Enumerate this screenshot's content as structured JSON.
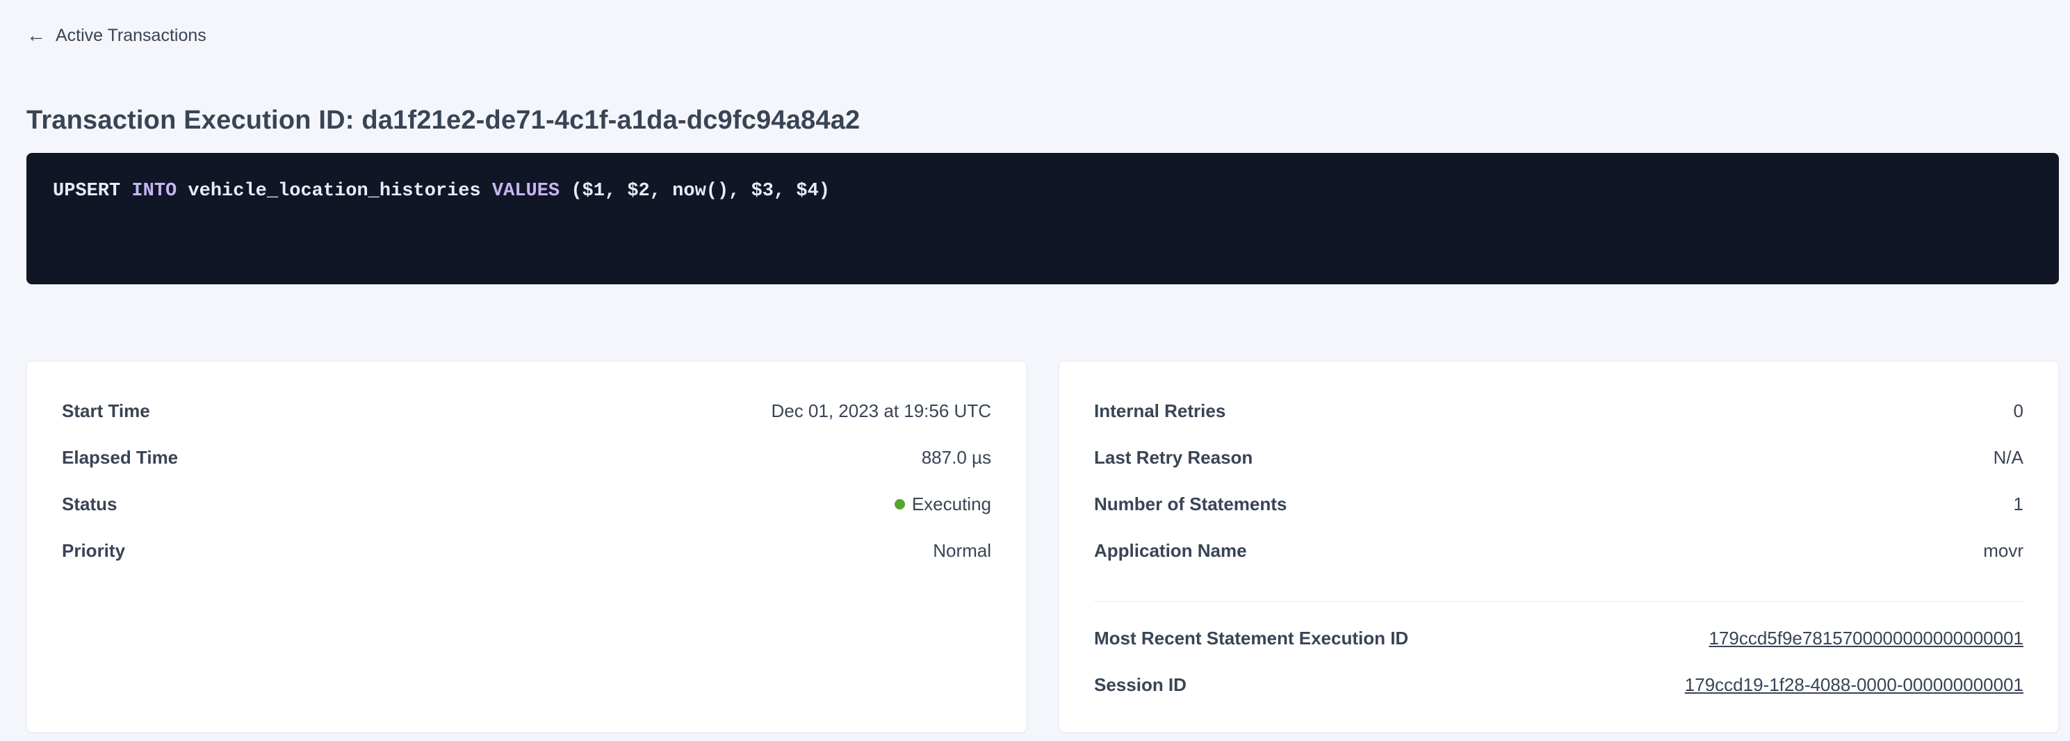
{
  "colors": {
    "page_background": "#f4f6fb",
    "card_background": "#ffffff",
    "sql_box_background": "#111627",
    "sql_keyword": "#c7b5f2",
    "sql_plain": "#e9ebf5",
    "text": "#394455",
    "link": "#2f5cec",
    "status_executing_green": "#55a532"
  },
  "header": {
    "back_icon": "left-arrow-icon",
    "back_label": "Active Transactions",
    "title": "Transaction Execution ID: da1f21e2-de71-4c1f-a1da-dc9fc94a84a2"
  },
  "sql": {
    "tokens": [
      {
        "text": "UPSERT",
        "type": "plain"
      },
      {
        "text": " INTO",
        "type": "keyword"
      },
      {
        "text": " vehicle_location_histories",
        "type": "plain"
      },
      {
        "text": " VALUES",
        "type": "keyword"
      },
      {
        "text": " ($1, $2, now(), $3, $4)",
        "type": "plain"
      }
    ]
  },
  "cards": {
    "left": {
      "rows": [
        {
          "label": "Start Time",
          "value": "Dec 01, 2023 at 19:56 UTC"
        },
        {
          "label": "Elapsed Time",
          "value": "887.0 µs"
        },
        {
          "label": "Status",
          "value": "Executing",
          "status_color": "#55a532"
        },
        {
          "label": "Priority",
          "value": "Normal"
        }
      ]
    },
    "right": {
      "rows": [
        {
          "label": "Internal Retries",
          "value": "0"
        },
        {
          "label": "Last Retry Reason",
          "value": "N/A"
        },
        {
          "label": "Number of Statements",
          "value": "1"
        },
        {
          "label": "Application Name",
          "value": "movr"
        }
      ],
      "links": [
        {
          "label": "Most Recent Statement Execution ID",
          "value": "179ccd5f9e7815700000000000000001"
        },
        {
          "label": "Session ID",
          "value": "179ccd19-1f28-4088-0000-000000000001"
        }
      ]
    }
  }
}
